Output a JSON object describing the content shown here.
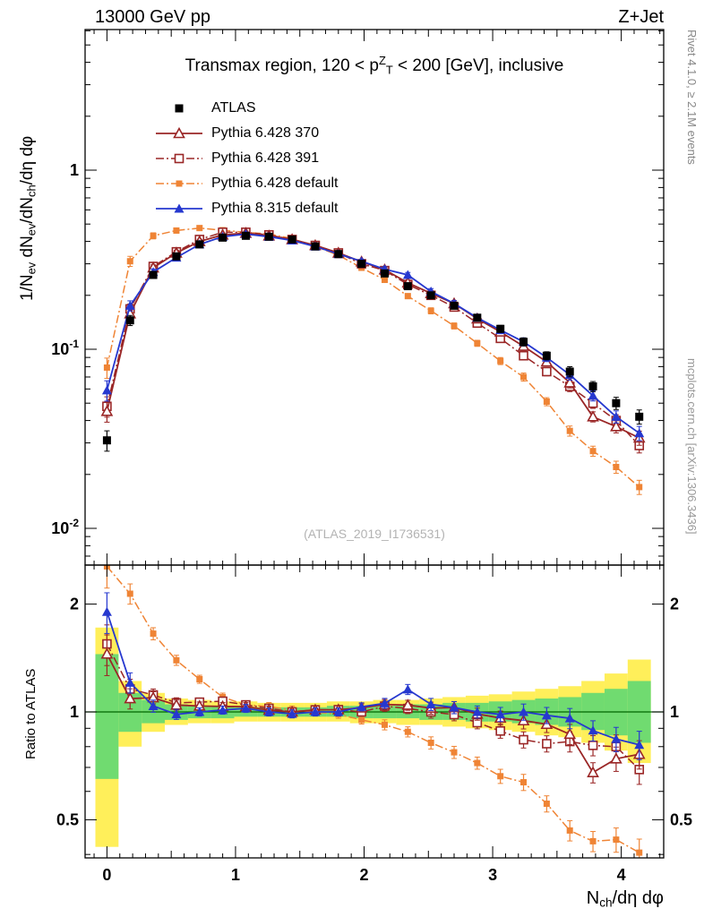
{
  "header": {
    "left": "13000 GeV pp",
    "right": "Z+Jet"
  },
  "titles": {
    "main_tokens": [
      {
        "t": "Transmax region, 120 < p"
      },
      {
        "t": "Z",
        "sup": true
      },
      {
        "t": "T",
        "sub": true
      },
      {
        "t": " < 200 [GeV], inclusive"
      }
    ],
    "y_main_tokens": [
      {
        "t": "1/N"
      },
      {
        "t": "ev",
        "sub": true
      },
      {
        "t": " dN"
      },
      {
        "t": "ev",
        "sub": true
      },
      {
        "t": "/dN"
      },
      {
        "t": "ch",
        "sub": true
      },
      {
        "t": "/dη dφ"
      }
    ],
    "y_ratio": "Ratio to ATLAS",
    "x_tokens": [
      {
        "t": "N"
      },
      {
        "t": "ch",
        "sub": true
      },
      {
        "t": "/dη dφ"
      }
    ]
  },
  "annotations": {
    "right_top": "Rivet 4.1.0, ≥ 2.1M events",
    "right_bottom": "mcplots.cern.ch [arXiv:1306.3436]",
    "watermark": "(ATLAS_2019_I1736531)"
  },
  "chart_data": {
    "type": "line",
    "title": "Transmax region, 120 < pT(Z) < 200 [GeV], inclusive",
    "xlabel": "N_ch/deta dphi",
    "ylabel": "1/N_ev dN_ev/dN_ch/deta dphi",
    "ratio_ylabel": "Ratio to ATLAS",
    "ratio_reference": "ATLAS",
    "x": [
      0,
      0.18,
      0.36,
      0.54,
      0.72,
      0.9,
      1.08,
      1.26,
      1.44,
      1.62,
      1.8,
      1.98,
      2.16,
      2.34,
      2.52,
      2.7,
      2.88,
      3.06,
      3.24,
      3.42,
      3.6,
      3.78,
      3.96,
      4.14
    ],
    "series": [
      {
        "name": "ATLAS",
        "color": "#000000",
        "marker": "square-filled",
        "line": "none",
        "values": [
          0.031,
          0.145,
          0.26,
          0.33,
          0.385,
          0.42,
          0.43,
          0.425,
          0.41,
          0.375,
          0.34,
          0.3,
          0.265,
          0.225,
          0.2,
          0.175,
          0.15,
          0.13,
          0.11,
          0.092,
          0.075,
          0.062,
          0.05,
          0.042
        ]
      },
      {
        "name": "Pythia 6.428 370",
        "color": "#9a2626",
        "marker": "triangle-open",
        "line": "solid",
        "values": [
          0.045,
          0.158,
          0.285,
          0.345,
          0.4,
          0.435,
          0.445,
          0.43,
          0.41,
          0.38,
          0.345,
          0.308,
          0.278,
          0.235,
          0.205,
          0.18,
          0.148,
          0.125,
          0.104,
          0.085,
          0.065,
          0.042,
          0.037,
          0.032
        ]
      },
      {
        "name": "Pythia 6.428 391",
        "color": "#9a2626",
        "marker": "square-open",
        "line": "dashdot",
        "values": [
          0.048,
          0.168,
          0.29,
          0.35,
          0.41,
          0.45,
          0.45,
          0.435,
          0.41,
          0.38,
          0.345,
          0.3,
          0.275,
          0.23,
          0.2,
          0.172,
          0.14,
          0.115,
          0.092,
          0.075,
          0.062,
          0.05,
          0.04,
          0.029
        ]
      },
      {
        "name": "Pythia 6.428 default",
        "color": "#ef8435",
        "marker": "square-filled-small",
        "line": "dashdot",
        "values": [
          0.079,
          0.31,
          0.43,
          0.46,
          0.475,
          0.462,
          0.45,
          0.44,
          0.415,
          0.375,
          0.335,
          0.285,
          0.244,
          0.198,
          0.164,
          0.135,
          0.108,
          0.086,
          0.07,
          0.051,
          0.035,
          0.027,
          0.022,
          0.017
        ]
      },
      {
        "name": "Pythia 8.315 default",
        "color": "#2638cf",
        "marker": "triangle-filled",
        "line": "solid",
        "values": [
          0.059,
          0.175,
          0.27,
          0.325,
          0.385,
          0.425,
          0.44,
          0.425,
          0.405,
          0.375,
          0.34,
          0.31,
          0.28,
          0.26,
          0.21,
          0.18,
          0.15,
          0.128,
          0.11,
          0.09,
          0.072,
          0.055,
          0.042,
          0.034
        ]
      }
    ],
    "rel_err": [
      0.1,
      0.05,
      0.03,
      0.025,
      0.02,
      0.02,
      0.02,
      0.02,
      0.02,
      0.02,
      0.02,
      0.02,
      0.025,
      0.025,
      0.03,
      0.03,
      0.03,
      0.035,
      0.04,
      0.04,
      0.05,
      0.05,
      0.06,
      0.07
    ],
    "bands": {
      "yellow_lo": [
        0.42,
        0.8,
        0.88,
        0.92,
        0.93,
        0.93,
        0.94,
        0.94,
        0.94,
        0.94,
        0.94,
        0.93,
        0.93,
        0.92,
        0.92,
        0.91,
        0.9,
        0.89,
        0.88,
        0.86,
        0.85,
        0.82,
        0.78,
        0.72
      ],
      "yellow_hi": [
        1.72,
        1.22,
        1.13,
        1.09,
        1.08,
        1.07,
        1.07,
        1.06,
        1.06,
        1.06,
        1.07,
        1.07,
        1.08,
        1.08,
        1.09,
        1.1,
        1.11,
        1.12,
        1.14,
        1.16,
        1.18,
        1.22,
        1.28,
        1.4
      ],
      "green_lo": [
        0.65,
        0.88,
        0.93,
        0.95,
        0.96,
        0.96,
        0.97,
        0.97,
        0.97,
        0.97,
        0.97,
        0.96,
        0.96,
        0.96,
        0.95,
        0.95,
        0.94,
        0.94,
        0.93,
        0.92,
        0.91,
        0.89,
        0.86,
        0.82
      ],
      "green_hi": [
        1.45,
        1.13,
        1.08,
        1.05,
        1.04,
        1.04,
        1.03,
        1.03,
        1.03,
        1.03,
        1.04,
        1.04,
        1.04,
        1.05,
        1.05,
        1.06,
        1.06,
        1.07,
        1.08,
        1.09,
        1.1,
        1.13,
        1.16,
        1.22
      ],
      "colors": {
        "yellow": "#ffef5a",
        "green": "#70db70"
      }
    },
    "axes": {
      "x": {
        "min": -0.17,
        "max": 4.33,
        "major": [
          0,
          1,
          2,
          3,
          4
        ],
        "labels": [
          "0",
          "1",
          "2",
          "3",
          "4"
        ]
      },
      "y_main": {
        "scale": "log",
        "min": 0.0062,
        "max": 6.1,
        "tick_labels": [
          {
            "v": 1,
            "t": "1"
          },
          {
            "v": 0.1,
            "t": "10",
            "sup": "-1"
          },
          {
            "v": 0.01,
            "t": "10",
            "sup": "-2"
          }
        ]
      },
      "y_ratio": {
        "scale": "log",
        "min": 0.39,
        "max": 2.56,
        "tick_labels": [
          {
            "v": 2,
            "t": "2"
          },
          {
            "v": 1,
            "t": "1"
          },
          {
            "v": 0.5,
            "t": "0.5"
          }
        ],
        "reference_line": 1
      }
    },
    "legend_position": "top-left"
  }
}
